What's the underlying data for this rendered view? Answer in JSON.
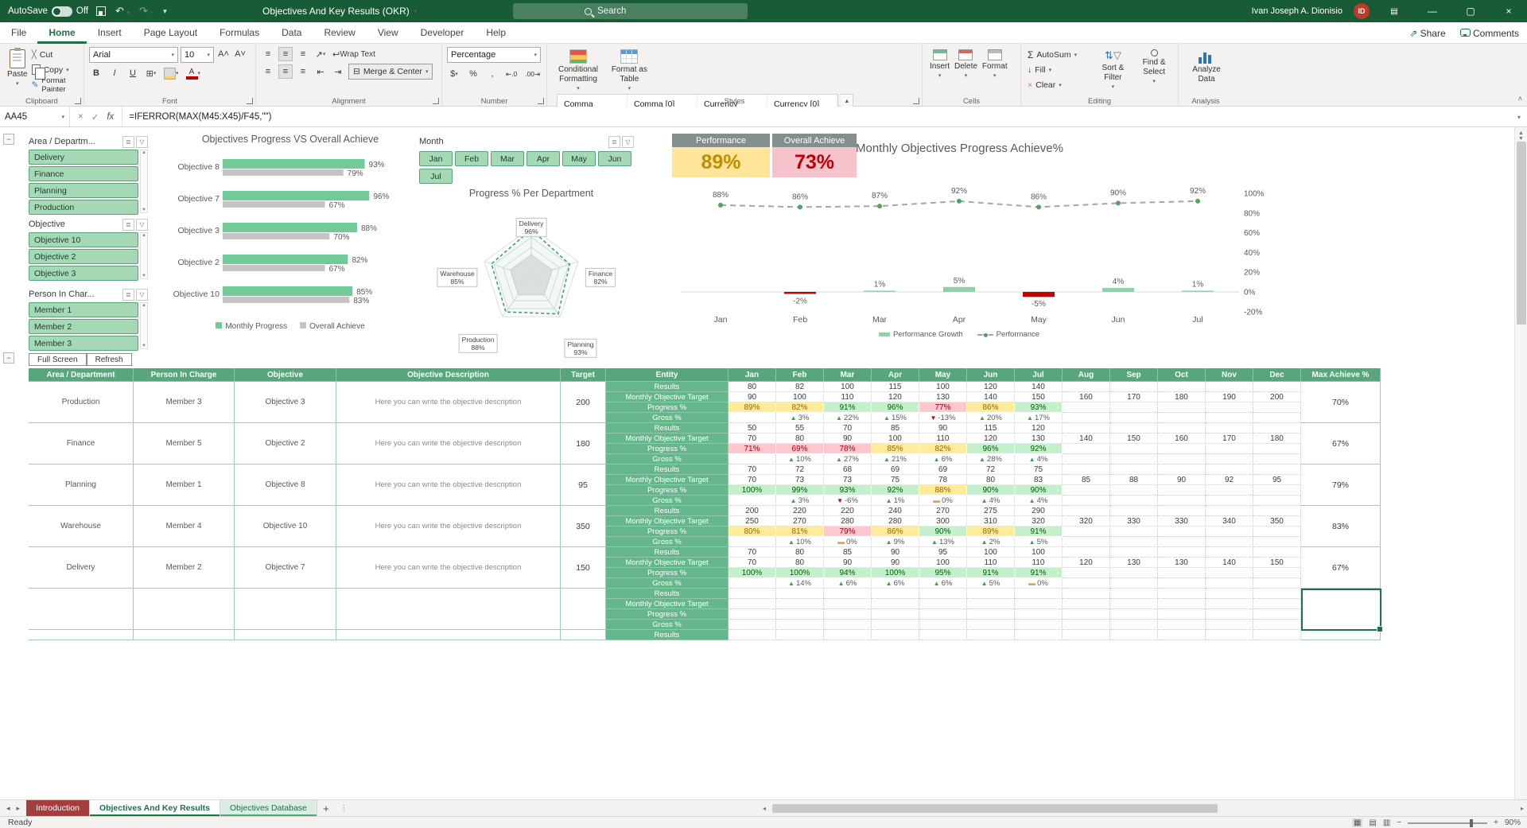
{
  "titlebar": {
    "autosave": "AutoSave",
    "autosave_state": "Off",
    "title": "Objectives And Key Results (OKR)",
    "search": "Search",
    "user": "Ivan Joseph A. Dionisio",
    "user_initials": "ID"
  },
  "ribbon_tabs": [
    "File",
    "Home",
    "Insert",
    "Page Layout",
    "Formulas",
    "Data",
    "Review",
    "View",
    "Developer",
    "Help"
  ],
  "active_tab": "Home",
  "share_label": "Share",
  "comments_label": "Comments",
  "ribbon": {
    "clipboard": {
      "label": "Clipboard",
      "paste": "Paste",
      "cut": "Cut",
      "copy": "Copy",
      "format_painter": "Format Painter"
    },
    "font": {
      "label": "Font",
      "family": "Arial",
      "size": "10"
    },
    "alignment": {
      "label": "Alignment",
      "wrap": "Wrap Text",
      "merge": "Merge & Center"
    },
    "number": {
      "label": "Number",
      "format": "Percentage"
    },
    "styles": {
      "label": "Styles",
      "conditional": "Conditional Formatting",
      "format_table": "Format as Table",
      "gallery": [
        [
          "Comma",
          "Comma [0]",
          "Currency",
          "Currency [0]"
        ],
        [
          "Percent"
        ]
      ],
      "selected": "Percent"
    },
    "cells": {
      "label": "Cells",
      "items": [
        "Insert",
        "Delete",
        "Format"
      ]
    },
    "editing": {
      "label": "Editing",
      "autosum": "AutoSum",
      "fill": "Fill",
      "clear": "Clear",
      "sort": "Sort & Filter",
      "find": "Find & Select"
    },
    "analysis": {
      "label": "Analysis",
      "analyze": "Analyze Data"
    }
  },
  "formula_bar": {
    "cell_ref": "AA45",
    "formula": "=IFERROR(MAX(M45:X45)/F45,\"\")"
  },
  "dashboard": {
    "slicers": [
      {
        "title": "Area / Departm...",
        "items": [
          "Delivery",
          "Finance",
          "Planning",
          "Production"
        ]
      },
      {
        "title": "Objective",
        "items": [
          "Objective 10",
          "Objective 2",
          "Objective 3"
        ]
      },
      {
        "title": "Person In Char...",
        "items": [
          "Member 1",
          "Member 2",
          "Member 3"
        ]
      }
    ],
    "month_slicer": {
      "title": "Month",
      "items": [
        "Jan",
        "Feb",
        "Mar",
        "Apr",
        "May",
        "Jun",
        "Jul"
      ]
    },
    "toolbar_buttons": [
      "Full Screen",
      "Refresh"
    ],
    "kpis": [
      {
        "label": "Performance",
        "value": "89%",
        "bg": "#FFE599",
        "fg": "#BF8F00"
      },
      {
        "label": "Overall Achieve",
        "value": "73%",
        "bg": "#F6C3CD",
        "fg": "#C00000"
      }
    ]
  },
  "chart_data": [
    {
      "type": "bar",
      "title": "Objectives Progress VS Overall Achieve",
      "categories": [
        "Objective 8",
        "Objective 7",
        "Objective 3",
        "Objective 2",
        "Objective 10"
      ],
      "series": [
        {
          "name": "Monthly Progress",
          "values": [
            93,
            96,
            88,
            82,
            85
          ],
          "color": "#74C99B"
        },
        {
          "name": "Overall Achieve",
          "values": [
            79,
            67,
            70,
            67,
            83
          ],
          "color": "#C4C4C4"
        }
      ],
      "xlim": [
        0,
        100
      ]
    },
    {
      "type": "radar",
      "title": "Progress % Per Department",
      "categories": [
        "Delivery",
        "Finance",
        "Planning",
        "Production",
        "Warehouse"
      ],
      "values": [
        96,
        82,
        93,
        88,
        85
      ],
      "max": 100
    },
    {
      "type": "combo",
      "title": "Monthly Objectives Progress Achieve%",
      "categories": [
        "Jan",
        "Feb",
        "Mar",
        "Apr",
        "May",
        "Jun",
        "Jul"
      ],
      "line": {
        "name": "Performance",
        "values": [
          88,
          86,
          87,
          92,
          86,
          90,
          92
        ]
      },
      "bars": {
        "name": "Performance Growth",
        "values": [
          null,
          -2,
          1,
          5,
          -5,
          4,
          1
        ]
      },
      "ylim": [
        -20,
        100
      ],
      "yticks": [
        100,
        80,
        60,
        40,
        20,
        0,
        -20
      ]
    }
  ],
  "table": {
    "header": [
      "Area / Department",
      "Person In Charge",
      "Objective",
      "Objective Description",
      "Target",
      "Entity",
      "Jan",
      "Feb",
      "Mar",
      "Apr",
      "May",
      "Jun",
      "Jul",
      "Aug",
      "Sep",
      "Oct",
      "Nov",
      "Dec",
      "Max Achieve %"
    ],
    "row_labels": [
      "Results",
      "Monthly Objective Target",
      "Progress %",
      "Gross %"
    ],
    "partial_row_label": "Results",
    "groups": [
      {
        "dept": "Production",
        "person": "Member 3",
        "objective": "Objective 3",
        "desc": "Here you can write the objective description",
        "target": "200",
        "max": "70%",
        "results": [
          "80",
          "82",
          "100",
          "115",
          "100",
          "120",
          "140",
          "",
          "",
          "",
          "",
          ""
        ],
        "targets": [
          "90",
          "100",
          "110",
          "120",
          "130",
          "140",
          "150",
          "160",
          "170",
          "180",
          "190",
          "200"
        ],
        "progress": [
          {
            "v": "89%",
            "c": "y"
          },
          {
            "v": "82%",
            "c": "y"
          },
          {
            "v": "91%",
            "c": "g"
          },
          {
            "v": "96%",
            "c": "g"
          },
          {
            "v": "77%",
            "c": "r"
          },
          {
            "v": "86%",
            "c": "y"
          },
          {
            "v": "93%",
            "c": "g"
          },
          null,
          null,
          null,
          null,
          null
        ],
        "gross": [
          null,
          {
            "d": "u",
            "v": "3%"
          },
          {
            "d": "u",
            "v": "22%"
          },
          {
            "d": "u",
            "v": "15%"
          },
          {
            "d": "d",
            "v": "-13%"
          },
          {
            "d": "u",
            "v": "20%"
          },
          {
            "d": "u",
            "v": "17%"
          },
          null,
          null,
          null,
          null,
          null
        ]
      },
      {
        "dept": "Finance",
        "person": "Member 5",
        "objective": "Objective 2",
        "desc": "Here you can write the objective description",
        "target": "180",
        "max": "67%",
        "results": [
          "50",
          "55",
          "70",
          "85",
          "90",
          "115",
          "120",
          "",
          "",
          "",
          "",
          ""
        ],
        "targets": [
          "70",
          "80",
          "90",
          "100",
          "110",
          "120",
          "130",
          "140",
          "150",
          "160",
          "170",
          "180"
        ],
        "progress": [
          {
            "v": "71%",
            "c": "r"
          },
          {
            "v": "69%",
            "c": "r"
          },
          {
            "v": "78%",
            "c": "r"
          },
          {
            "v": "85%",
            "c": "y"
          },
          {
            "v": "82%",
            "c": "y"
          },
          {
            "v": "96%",
            "c": "g"
          },
          {
            "v": "92%",
            "c": "g"
          },
          null,
          null,
          null,
          null,
          null
        ],
        "gross": [
          null,
          {
            "d": "u",
            "v": "10%"
          },
          {
            "d": "u",
            "v": "27%"
          },
          {
            "d": "u",
            "v": "21%"
          },
          {
            "d": "u",
            "v": "6%"
          },
          {
            "d": "u",
            "v": "28%"
          },
          {
            "d": "u",
            "v": "4%"
          },
          null,
          null,
          null,
          null,
          null
        ]
      },
      {
        "dept": "Planning",
        "person": "Member 1",
        "objective": "Objective 8",
        "desc": "Here you can write the objective description",
        "target": "95",
        "max": "79%",
        "results": [
          "70",
          "72",
          "68",
          "69",
          "69",
          "72",
          "75",
          "",
          "",
          "",
          "",
          ""
        ],
        "targets": [
          "70",
          "73",
          "73",
          "75",
          "78",
          "80",
          "83",
          "85",
          "88",
          "90",
          "92",
          "95"
        ],
        "progress": [
          {
            "v": "100%",
            "c": "g"
          },
          {
            "v": "99%",
            "c": "g"
          },
          {
            "v": "93%",
            "c": "g"
          },
          {
            "v": "92%",
            "c": "g"
          },
          {
            "v": "88%",
            "c": "y"
          },
          {
            "v": "90%",
            "c": "g"
          },
          {
            "v": "90%",
            "c": "g"
          },
          null,
          null,
          null,
          null,
          null
        ],
        "gross": [
          null,
          {
            "d": "u",
            "v": "3%"
          },
          {
            "d": "d",
            "v": "-6%"
          },
          {
            "d": "u",
            "v": "1%"
          },
          {
            "d": "e",
            "v": "0%"
          },
          {
            "d": "u",
            "v": "4%"
          },
          {
            "d": "u",
            "v": "4%"
          },
          null,
          null,
          null,
          null,
          null
        ]
      },
      {
        "dept": "Warehouse",
        "person": "Member 4",
        "objective": "Objective 10",
        "desc": "Here you can write the objective description",
        "target": "350",
        "max": "83%",
        "results": [
          "200",
          "220",
          "220",
          "240",
          "270",
          "275",
          "290",
          "",
          "",
          "",
          "",
          ""
        ],
        "targets": [
          "250",
          "270",
          "280",
          "280",
          "300",
          "310",
          "320",
          "320",
          "330",
          "330",
          "340",
          "350"
        ],
        "progress": [
          {
            "v": "80%",
            "c": "y"
          },
          {
            "v": "81%",
            "c": "y"
          },
          {
            "v": "79%",
            "c": "r"
          },
          {
            "v": "86%",
            "c": "y"
          },
          {
            "v": "90%",
            "c": "g"
          },
          {
            "v": "89%",
            "c": "y"
          },
          {
            "v": "91%",
            "c": "g"
          },
          null,
          null,
          null,
          null,
          null
        ],
        "gross": [
          null,
          {
            "d": "u",
            "v": "10%"
          },
          {
            "d": "e",
            "v": "0%"
          },
          {
            "d": "u",
            "v": "9%"
          },
          {
            "d": "u",
            "v": "13%"
          },
          {
            "d": "u",
            "v": "2%"
          },
          {
            "d": "u",
            "v": "5%"
          },
          null,
          null,
          null,
          null,
          null
        ]
      },
      {
        "dept": "Delivery",
        "person": "Member 2",
        "objective": "Objective 7",
        "desc": "Here you can write the objective description",
        "target": "150",
        "max": "67%",
        "results": [
          "70",
          "80",
          "85",
          "90",
          "95",
          "100",
          "100",
          "",
          "",
          "",
          "",
          ""
        ],
        "targets": [
          "70",
          "80",
          "90",
          "90",
          "100",
          "110",
          "110",
          "120",
          "130",
          "130",
          "140",
          "150"
        ],
        "progress": [
          {
            "v": "100%",
            "c": "g"
          },
          {
            "v": "100%",
            "c": "g"
          },
          {
            "v": "94%",
            "c": "g"
          },
          {
            "v": "100%",
            "c": "g"
          },
          {
            "v": "95%",
            "c": "g"
          },
          {
            "v": "91%",
            "c": "g"
          },
          {
            "v": "91%",
            "c": "g"
          },
          null,
          null,
          null,
          null,
          null
        ],
        "gross": [
          null,
          {
            "d": "u",
            "v": "14%"
          },
          {
            "d": "u",
            "v": "6%"
          },
          {
            "d": "u",
            "v": "6%"
          },
          {
            "d": "u",
            "v": "6%"
          },
          {
            "d": "u",
            "v": "5%"
          },
          {
            "d": "e",
            "v": "0%"
          },
          null,
          null,
          null,
          null,
          null
        ]
      },
      {
        "dept": "",
        "person": "",
        "objective": "",
        "desc": "",
        "target": "",
        "max": "",
        "results": [
          "",
          "",
          "",
          "",
          "",
          "",
          "",
          "",
          "",
          "",
          "",
          ""
        ],
        "targets": [
          "",
          "",
          "",
          "",
          "",
          "",
          "",
          "",
          "",
          "",
          "",
          ""
        ],
        "progress": [
          null,
          null,
          null,
          null,
          null,
          null,
          null,
          null,
          null,
          null,
          null,
          null
        ],
        "gross": [
          null,
          null,
          null,
          null,
          null,
          null,
          null,
          null,
          null,
          null,
          null,
          null
        ]
      }
    ]
  },
  "sheet_tabs": [
    {
      "label": "Introduction",
      "style": "red"
    },
    {
      "label": "Objectives And Key Results",
      "style": "active"
    },
    {
      "label": "Objectives Database",
      "style": "green"
    }
  ],
  "status_bar": {
    "ready": "Ready",
    "zoom": "90%"
  }
}
